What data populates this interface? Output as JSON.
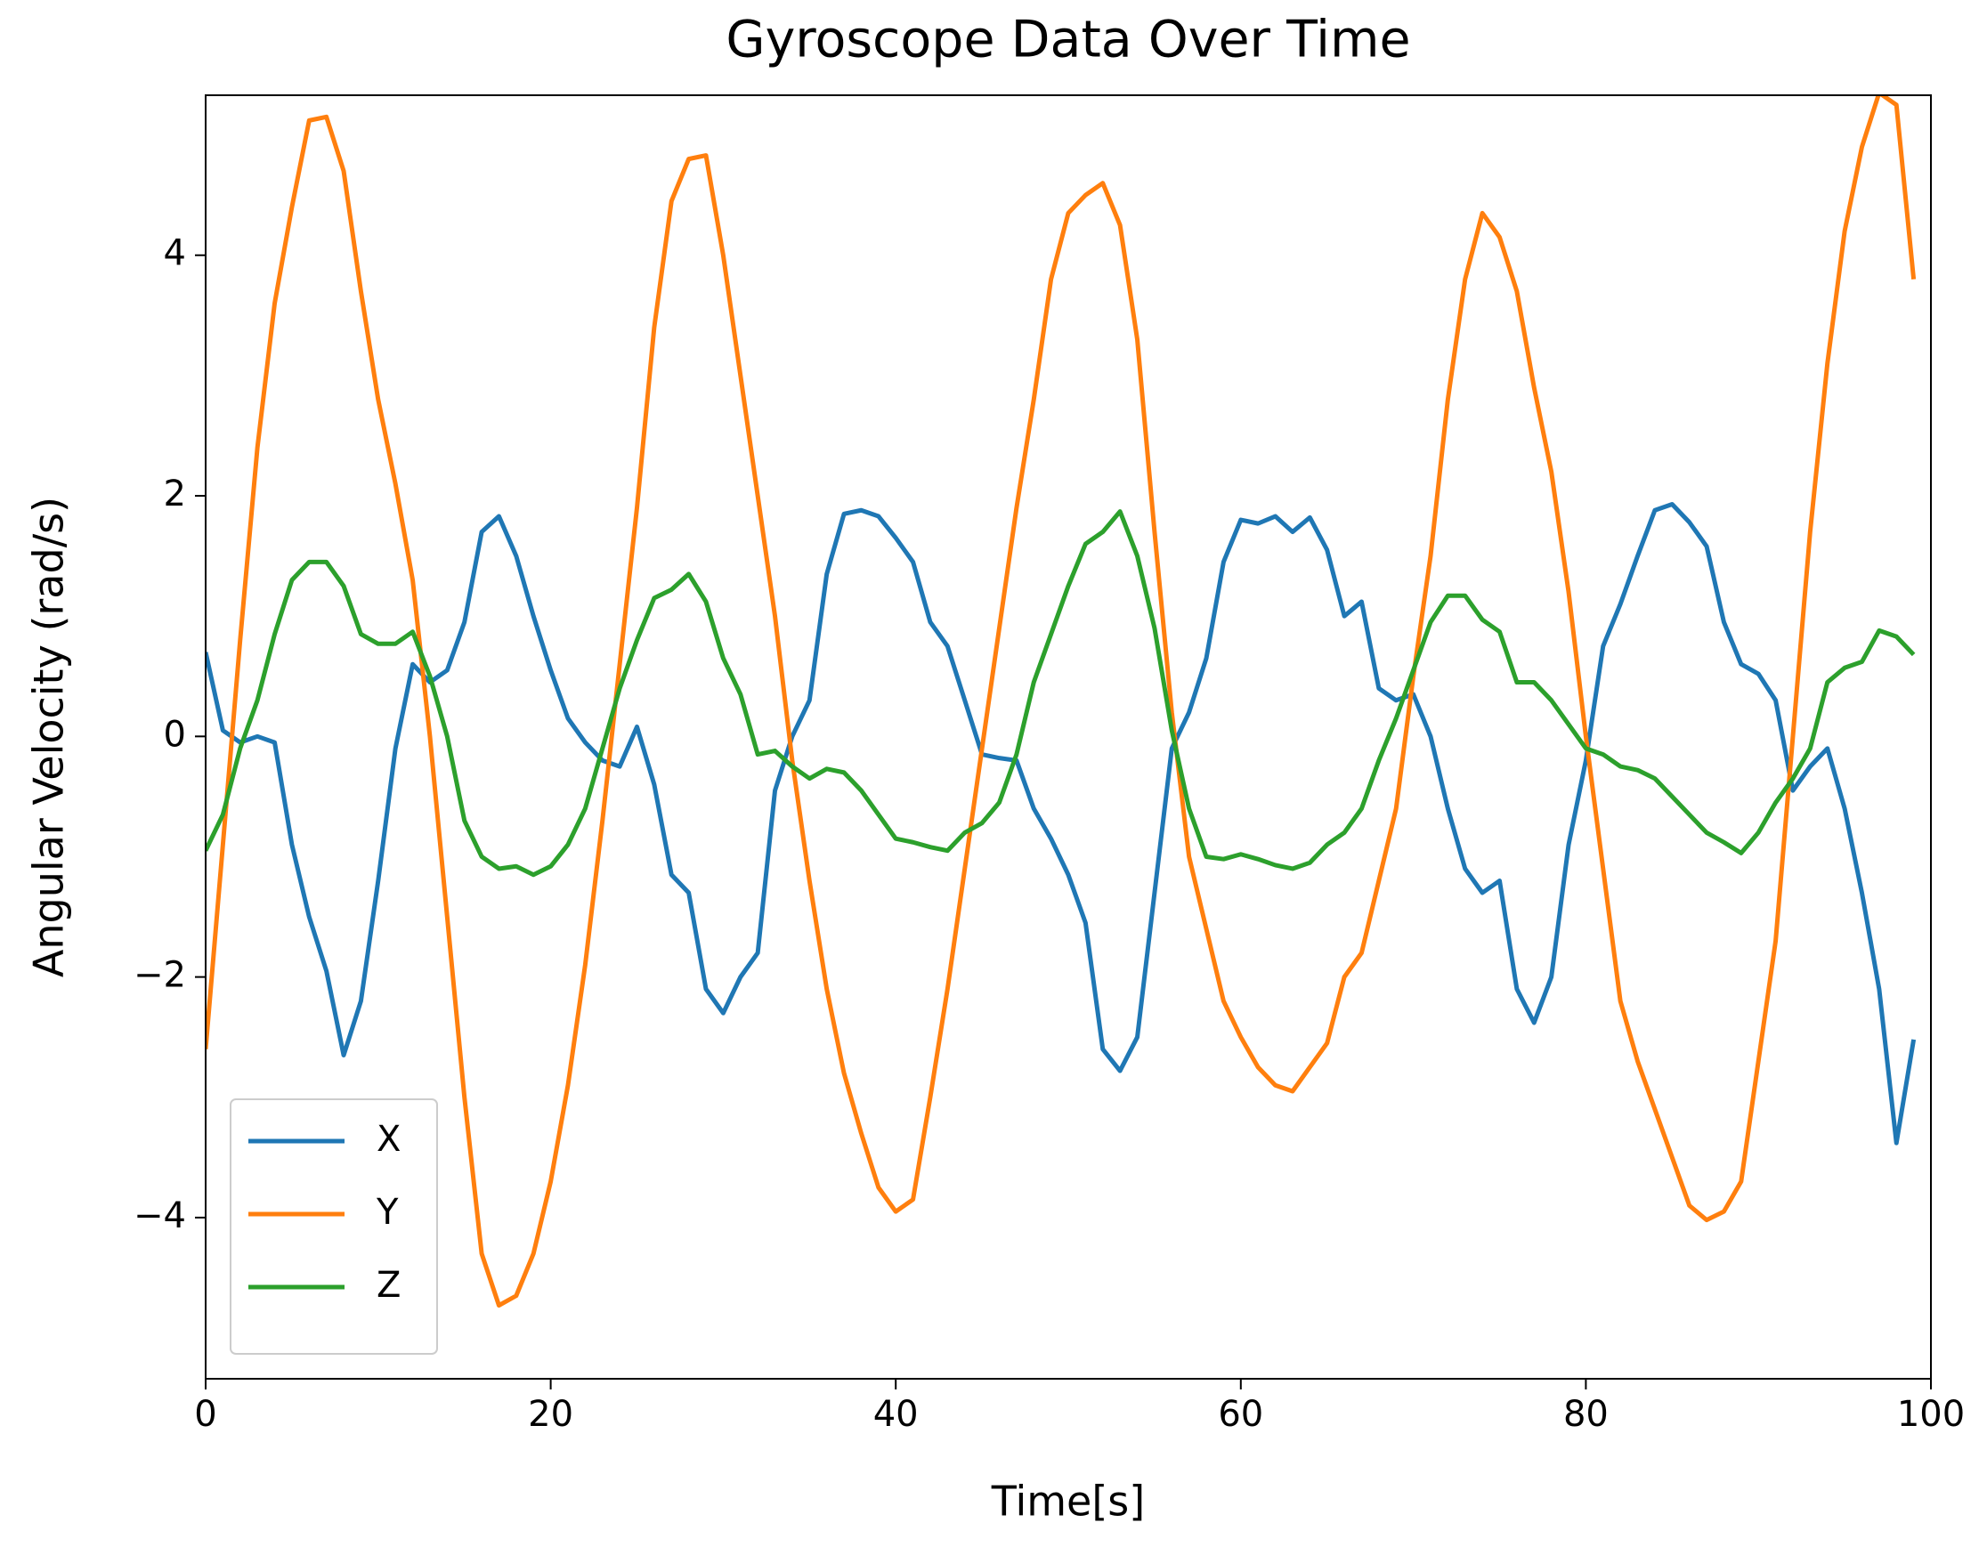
{
  "chart_data": {
    "type": "line",
    "title": "Gyroscope Data Over Time",
    "x_label": "Time[s]",
    "y_label": "Angular Velocity (rad/s)",
    "x": [
      0,
      1,
      2,
      3,
      4,
      5,
      6,
      7,
      8,
      9,
      10,
      11,
      12,
      13,
      14,
      15,
      16,
      17,
      18,
      19,
      20,
      21,
      22,
      23,
      24,
      25,
      26,
      27,
      28,
      29,
      30,
      31,
      32,
      33,
      34,
      35,
      36,
      37,
      38,
      39,
      40,
      41,
      42,
      43,
      44,
      45,
      46,
      47,
      48,
      49,
      50,
      51,
      52,
      53,
      54,
      55,
      56,
      57,
      58,
      59,
      60,
      61,
      62,
      63,
      64,
      65,
      66,
      67,
      68,
      69,
      70,
      71,
      72,
      73,
      74,
      75,
      76,
      77,
      78,
      79,
      80,
      81,
      82,
      83,
      84,
      85,
      86,
      87,
      88,
      89,
      90,
      91,
      92,
      93,
      94,
      95,
      96,
      97,
      98,
      99
    ],
    "series": [
      {
        "name": "X",
        "color": "#1f77b4",
        "values": [
          0.7,
          0.05,
          -0.05,
          0.0,
          -0.05,
          -0.9,
          -1.5,
          -1.95,
          -2.65,
          -2.2,
          -1.2,
          -0.1,
          0.6,
          0.45,
          0.55,
          0.95,
          1.7,
          1.83,
          1.5,
          1.0,
          0.55,
          0.15,
          -0.05,
          -0.2,
          -0.25,
          0.08,
          -0.4,
          -1.15,
          -1.3,
          -2.1,
          -2.3,
          -2.0,
          -1.8,
          -0.45,
          0.0,
          0.3,
          1.35,
          1.85,
          1.88,
          1.83,
          1.65,
          1.45,
          0.95,
          0.75,
          0.3,
          -0.15,
          -0.18,
          -0.2,
          -0.6,
          -0.85,
          -1.15,
          -1.55,
          -2.6,
          -2.78,
          -2.5,
          -1.3,
          -0.1,
          0.2,
          0.65,
          1.45,
          1.8,
          1.77,
          1.83,
          1.7,
          1.82,
          1.55,
          1.0,
          1.12,
          0.4,
          0.3,
          0.35,
          0.0,
          -0.6,
          -1.1,
          -1.3,
          -1.2,
          -2.1,
          -2.38,
          -2.0,
          -0.9,
          -0.2,
          0.75,
          1.1,
          1.5,
          1.88,
          1.93,
          1.78,
          1.58,
          0.95,
          0.6,
          0.52,
          0.3,
          -0.45,
          -0.25,
          -0.1,
          -0.6,
          -1.3,
          -2.1,
          -3.38,
          -2.52
        ]
      },
      {
        "name": "Y",
        "color": "#ff7f0e",
        "values": [
          -2.6,
          -0.9,
          0.8,
          2.4,
          3.6,
          4.4,
          5.12,
          5.15,
          4.7,
          3.7,
          2.8,
          2.1,
          1.3,
          0.0,
          -1.5,
          -3.0,
          -4.3,
          -4.73,
          -4.65,
          -4.3,
          -3.7,
          -2.9,
          -1.9,
          -0.7,
          0.6,
          1.9,
          3.4,
          4.45,
          4.8,
          4.83,
          4.0,
          3.0,
          2.0,
          1.0,
          -0.2,
          -1.2,
          -2.1,
          -2.8,
          -3.3,
          -3.75,
          -3.95,
          -3.85,
          -3.0,
          -2.1,
          -1.1,
          -0.1,
          0.9,
          1.9,
          2.8,
          3.8,
          4.35,
          4.5,
          4.6,
          4.25,
          3.3,
          1.7,
          0.2,
          -1.0,
          -1.6,
          -2.2,
          -2.5,
          -2.75,
          -2.9,
          -2.95,
          -2.75,
          -2.55,
          -2.0,
          -1.8,
          -1.2,
          -0.6,
          0.5,
          1.5,
          2.8,
          3.8,
          4.35,
          4.15,
          3.7,
          2.9,
          2.2,
          1.2,
          0.0,
          -1.1,
          -2.2,
          -2.7,
          -3.1,
          -3.5,
          -3.9,
          -4.02,
          -3.95,
          -3.7,
          -2.7,
          -1.7,
          0.0,
          1.7,
          3.1,
          4.2,
          4.9,
          5.35,
          5.25,
          3.8
        ]
      },
      {
        "name": "Z",
        "color": "#2ca02c",
        "values": [
          -0.95,
          -0.65,
          -0.1,
          0.3,
          0.85,
          1.3,
          1.45,
          1.45,
          1.25,
          0.85,
          0.77,
          0.77,
          0.87,
          0.5,
          0.0,
          -0.7,
          -1.0,
          -1.1,
          -1.08,
          -1.15,
          -1.08,
          -0.9,
          -0.6,
          -0.1,
          0.4,
          0.8,
          1.15,
          1.22,
          1.35,
          1.12,
          0.65,
          0.35,
          -0.15,
          -0.12,
          -0.25,
          -0.35,
          -0.27,
          -0.3,
          -0.45,
          -0.65,
          -0.85,
          -0.88,
          -0.92,
          -0.95,
          -0.8,
          -0.72,
          -0.55,
          -0.15,
          0.45,
          0.85,
          1.25,
          1.6,
          1.7,
          1.87,
          1.5,
          0.9,
          0.05,
          -0.6,
          -1.0,
          -1.02,
          -0.98,
          -1.02,
          -1.07,
          -1.1,
          -1.05,
          -0.9,
          -0.8,
          -0.6,
          -0.2,
          0.15,
          0.55,
          0.95,
          1.17,
          1.17,
          0.97,
          0.87,
          0.45,
          0.45,
          0.3,
          0.1,
          -0.1,
          -0.15,
          -0.25,
          -0.28,
          -0.35,
          -0.5,
          -0.65,
          -0.8,
          -0.88,
          -0.97,
          -0.8,
          -0.55,
          -0.35,
          -0.1,
          0.45,
          0.57,
          0.62,
          0.88,
          0.83,
          0.68
        ]
      }
    ],
    "xlim": [
      0,
      100
    ],
    "xticks": [
      0,
      20,
      40,
      60,
      80,
      100
    ],
    "ylim": [
      -5.34,
      5.33
    ],
    "yticks": [
      {
        "value": -4,
        "label": "−4"
      },
      {
        "value": -2,
        "label": "−2"
      },
      0,
      2,
      4
    ],
    "grid": false,
    "legend": "lower left"
  }
}
